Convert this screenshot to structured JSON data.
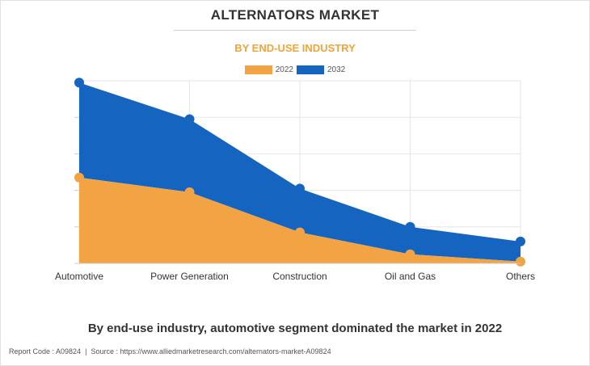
{
  "title": "ALTERNATORS MARKET",
  "subtitle": "BY END-USE INDUSTRY",
  "caption": "By end-use industry, automotive segment dominated the market in 2022",
  "footer": {
    "report_code": "Report Code : A09824",
    "separator": "|",
    "source": "Source : https://www.alliedmarketresearch.com/alternators-market-A09824"
  },
  "colors": {
    "series_2022": "#f2a444",
    "series_2032": "#1565c0",
    "grid": "#e6e6e6"
  },
  "chart_data": {
    "type": "area",
    "stacked": true,
    "categories": [
      "Automotive",
      "Power Generation",
      "Construction",
      "Oil and Gas",
      "Others"
    ],
    "series": [
      {
        "name": "2022",
        "values": [
          47,
          39,
          17,
          5,
          1
        ]
      },
      {
        "name": "2032",
        "values": [
          52,
          40,
          24,
          15,
          11
        ]
      }
    ],
    "ylim": [
      0,
      100
    ],
    "y_tick_labels_visible": false,
    "grid": true,
    "legend": "top-center"
  }
}
